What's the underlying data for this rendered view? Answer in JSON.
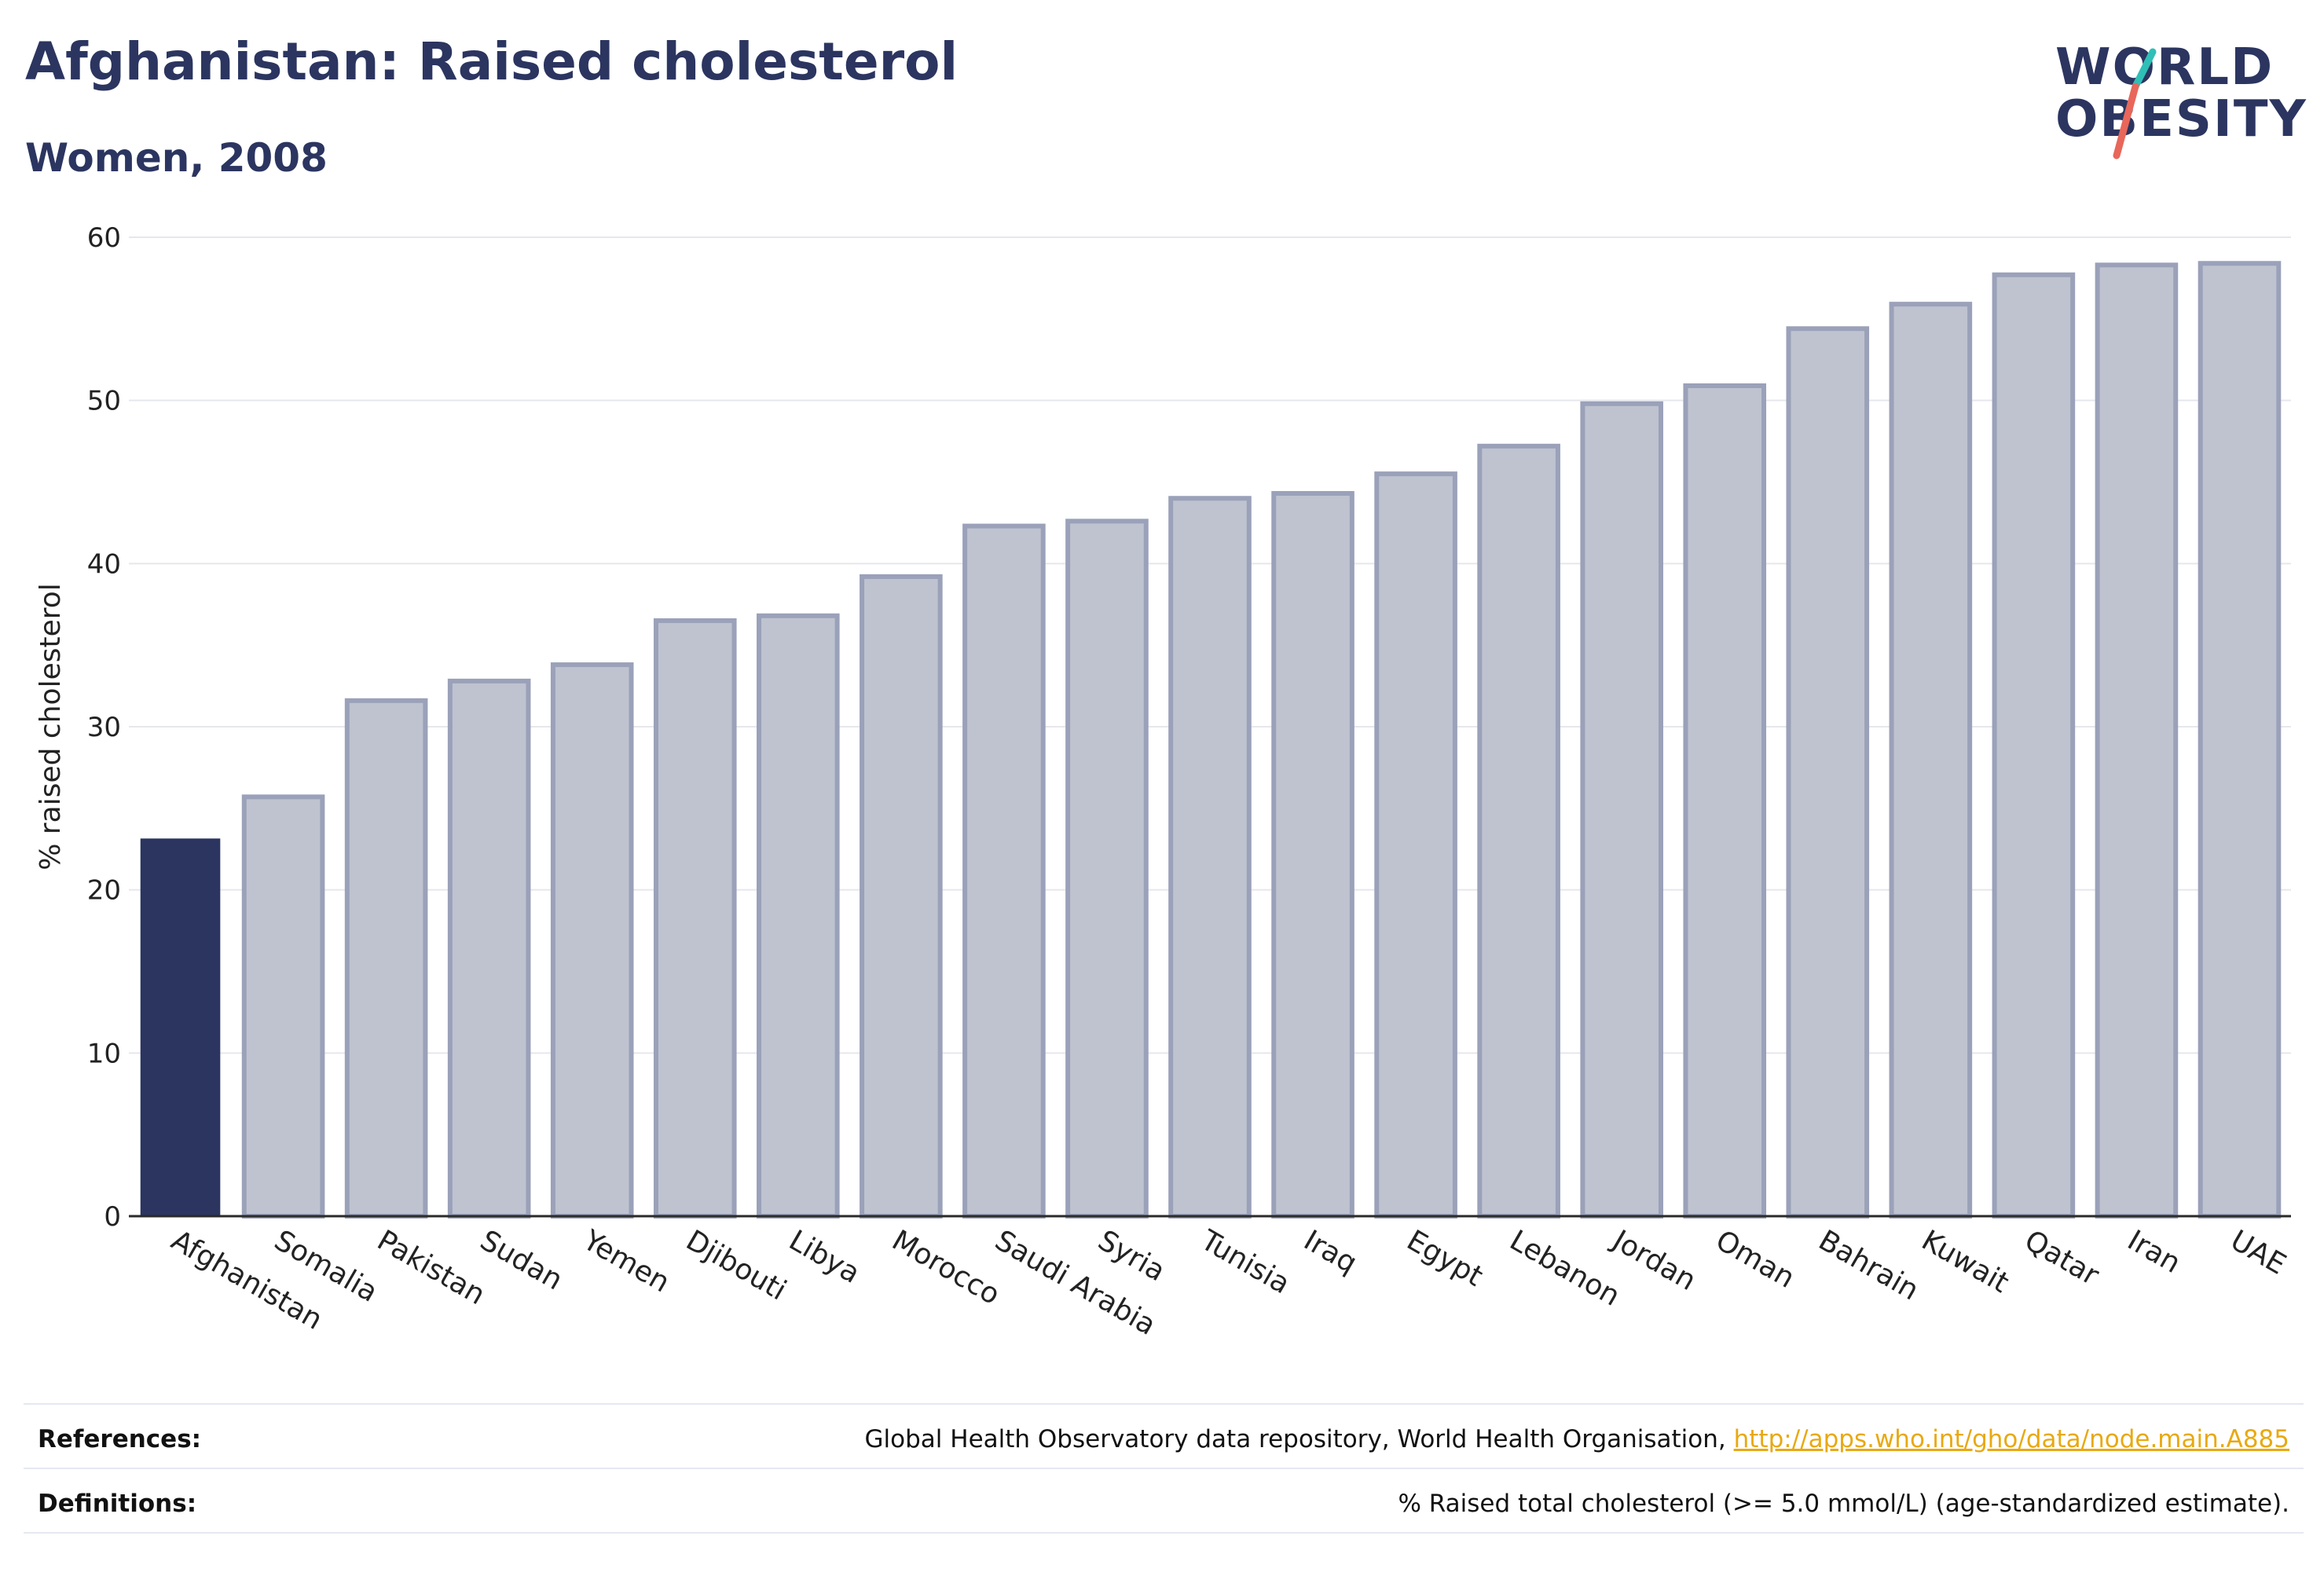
{
  "header": {
    "title": "Afghanistan: Raised cholesterol",
    "subtitle": "Women, 2008"
  },
  "logo": {
    "line1": "WORLD",
    "line2": "OBESITY",
    "slash_colors": [
      "#2fbfb7",
      "#e8675a"
    ]
  },
  "colors": {
    "highlight": "#2b3560",
    "bar_fill": "#bfc3d0",
    "bar_stroke": "#9aa1b9",
    "grid": "#e6e7ed",
    "axis": "#2a2a2a",
    "link": "#e8a911"
  },
  "chart_data": {
    "type": "bar",
    "ylabel": "% raised cholesterol",
    "ylim": [
      0,
      60
    ],
    "yticks": [
      0,
      10,
      20,
      30,
      40,
      50,
      60
    ],
    "grid": true,
    "highlight": "Afghanistan",
    "categories": [
      "Afghanistan",
      "Somalia",
      "Pakistan",
      "Sudan",
      "Yemen",
      "Djibouti",
      "Libya",
      "Morocco",
      "Saudi Arabia",
      "Syria",
      "Tunisia",
      "Iraq",
      "Egypt",
      "Lebanon",
      "Jordan",
      "Oman",
      "Bahrain",
      "Kuwait",
      "Qatar",
      "Iran",
      "UAE"
    ],
    "values": [
      23.1,
      25.7,
      31.6,
      32.8,
      33.8,
      36.5,
      36.8,
      39.2,
      42.3,
      42.6,
      44.0,
      44.3,
      45.5,
      47.2,
      49.8,
      50.9,
      54.4,
      55.9,
      57.7,
      58.3,
      58.4
    ]
  },
  "footer": {
    "references_label": "References:",
    "references_text": "Global Health Observatory data repository, World Health Organisation, ",
    "references_link": "http://apps.who.int/gho/data/node.main.A885",
    "definitions_label": "Definitions:",
    "definitions_text": "% Raised total cholesterol (>= 5.0 mmol/L) (age-standardized estimate)."
  }
}
